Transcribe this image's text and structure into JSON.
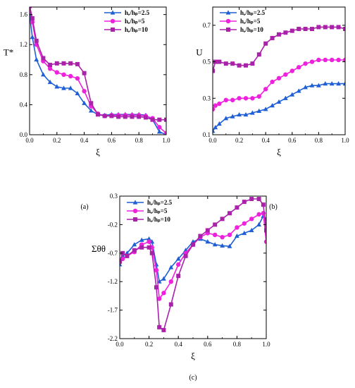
{
  "series_styles": [
    {
      "name": "hₑ/hₚ=2.5",
      "color": "#1f5fd6",
      "marker": "triangle"
    },
    {
      "name": "hₑ/hₚ=5",
      "color": "#ee22dd",
      "marker": "circle"
    },
    {
      "name": "hₑ/hₚ=10",
      "color": "#aa22aa",
      "marker": "square"
    }
  ],
  "chart_data": [
    {
      "type": "line",
      "caption": "(a)",
      "xlabel": "ξ",
      "ylabel": "T*",
      "xlim": [
        0,
        1
      ],
      "ylim": [
        0,
        1.7
      ],
      "xticks": [
        "0.0",
        "0.2",
        "0.4",
        "0.6",
        "0.8",
        "1.0"
      ],
      "yticks": [
        "0.0",
        "0.4",
        "0.8",
        "1.2",
        "1.6"
      ],
      "legend": "top-right",
      "series": [
        {
          "name": "hₑ/hₚ=2.5",
          "x": [
            0,
            0.02,
            0.05,
            0.1,
            0.15,
            0.2,
            0.25,
            0.3,
            0.35,
            0.4,
            0.45,
            0.5,
            0.55,
            0.6,
            0.65,
            0.7,
            0.75,
            0.8,
            0.85,
            0.9,
            0.95,
            1.0
          ],
          "y": [
            1.6,
            1.3,
            1.0,
            0.8,
            0.7,
            0.64,
            0.62,
            0.62,
            0.55,
            0.42,
            0.32,
            0.27,
            0.26,
            0.27,
            0.27,
            0.27,
            0.27,
            0.27,
            0.26,
            0.2,
            0.04,
            0.0
          ]
        },
        {
          "name": "hₑ/hₚ=5",
          "x": [
            0,
            0.02,
            0.05,
            0.1,
            0.15,
            0.2,
            0.25,
            0.3,
            0.35,
            0.4,
            0.45,
            0.5,
            0.55,
            0.6,
            0.65,
            0.7,
            0.75,
            0.8,
            0.85,
            0.9,
            0.95,
            1.0
          ],
          "y": [
            1.7,
            1.5,
            1.2,
            0.98,
            0.88,
            0.83,
            0.8,
            0.78,
            0.75,
            0.58,
            0.38,
            0.28,
            0.25,
            0.26,
            0.26,
            0.26,
            0.26,
            0.26,
            0.25,
            0.22,
            0.1,
            0.02
          ]
        },
        {
          "name": "hₑ/hₚ=10",
          "x": [
            0,
            0.02,
            0.05,
            0.1,
            0.15,
            0.2,
            0.25,
            0.3,
            0.35,
            0.4,
            0.45,
            0.5,
            0.55,
            0.6,
            0.65,
            0.7,
            0.75,
            0.8,
            0.85,
            0.9,
            0.95,
            1.0
          ],
          "y": [
            1.72,
            1.55,
            1.25,
            1.02,
            0.93,
            0.95,
            0.95,
            0.95,
            0.94,
            0.82,
            0.42,
            0.27,
            0.25,
            0.25,
            0.24,
            0.24,
            0.24,
            0.24,
            0.23,
            0.2,
            0.2,
            0.2
          ]
        }
      ]
    },
    {
      "type": "line",
      "caption": "(b)",
      "xlabel": "ξ",
      "ylabel": "U",
      "xlim": [
        0,
        1
      ],
      "ylim": [
        0.1,
        0.8
      ],
      "xticks": [
        "0.0",
        "0.2",
        "0.4",
        "0.6",
        "0.8",
        "1.0"
      ],
      "yticks": [
        "0.1",
        "0.3",
        "0.5",
        "0.7"
      ],
      "legend": "top-left",
      "series": [
        {
          "name": "hₑ/hₚ=2.5",
          "x": [
            0,
            0.02,
            0.05,
            0.1,
            0.15,
            0.2,
            0.25,
            0.3,
            0.35,
            0.4,
            0.45,
            0.5,
            0.55,
            0.6,
            0.65,
            0.7,
            0.75,
            0.8,
            0.85,
            0.9,
            0.95,
            1.0
          ],
          "y": [
            0.12,
            0.14,
            0.16,
            0.19,
            0.2,
            0.21,
            0.21,
            0.22,
            0.23,
            0.24,
            0.26,
            0.28,
            0.3,
            0.32,
            0.34,
            0.36,
            0.37,
            0.37,
            0.38,
            0.38,
            0.38,
            0.38
          ]
        },
        {
          "name": "hₑ/hₚ=5",
          "x": [
            0,
            0.02,
            0.05,
            0.1,
            0.15,
            0.2,
            0.25,
            0.3,
            0.35,
            0.4,
            0.45,
            0.5,
            0.55,
            0.6,
            0.65,
            0.7,
            0.75,
            0.8,
            0.85,
            0.9,
            0.95,
            1.0
          ],
          "y": [
            0.24,
            0.26,
            0.27,
            0.29,
            0.29,
            0.3,
            0.3,
            0.3,
            0.31,
            0.35,
            0.39,
            0.41,
            0.43,
            0.45,
            0.47,
            0.49,
            0.5,
            0.51,
            0.51,
            0.51,
            0.51,
            0.51
          ]
        },
        {
          "name": "hₑ/hₚ=10",
          "x": [
            0,
            0.02,
            0.05,
            0.1,
            0.15,
            0.2,
            0.25,
            0.3,
            0.35,
            0.4,
            0.45,
            0.5,
            0.55,
            0.6,
            0.65,
            0.7,
            0.75,
            0.8,
            0.85,
            0.9,
            0.95,
            1.0
          ],
          "y": [
            0.45,
            0.5,
            0.5,
            0.49,
            0.49,
            0.48,
            0.48,
            0.49,
            0.54,
            0.6,
            0.63,
            0.65,
            0.66,
            0.67,
            0.68,
            0.68,
            0.68,
            0.69,
            0.69,
            0.69,
            0.69,
            0.68
          ]
        }
      ]
    },
    {
      "type": "line",
      "caption": "(c)",
      "xlabel": "ξ",
      "ylabel": "Σθθ",
      "xlim": [
        0,
        1
      ],
      "ylim": [
        -2.2,
        0.3
      ],
      "xticks": [
        "0.0",
        "0.2",
        "0.4",
        "0.6",
        "0.8",
        "1.0"
      ],
      "yticks": [
        "-2.2",
        "-1.7",
        "-1.2",
        "-0.7",
        "-0.2",
        "0.3"
      ],
      "legend": "top-left",
      "series": [
        {
          "name": "hₑ/hₚ=2.5",
          "x": [
            0,
            0.02,
            0.05,
            0.1,
            0.15,
            0.2,
            0.22,
            0.25,
            0.27,
            0.3,
            0.35,
            0.4,
            0.45,
            0.5,
            0.55,
            0.6,
            0.65,
            0.7,
            0.75,
            0.8,
            0.85,
            0.9,
            0.95,
            0.98,
            1.0
          ],
          "y": [
            -0.9,
            -0.75,
            -0.7,
            -0.55,
            -0.47,
            -0.45,
            -0.5,
            -0.9,
            -1.2,
            -1.15,
            -0.95,
            -0.8,
            -0.65,
            -0.5,
            -0.45,
            -0.5,
            -0.55,
            -0.57,
            -0.58,
            -0.4,
            -0.35,
            -0.3,
            -0.2,
            -0.05,
            -0.1
          ]
        },
        {
          "name": "hₑ/hₚ=5",
          "x": [
            0,
            0.02,
            0.05,
            0.1,
            0.15,
            0.2,
            0.22,
            0.25,
            0.27,
            0.3,
            0.35,
            0.4,
            0.45,
            0.5,
            0.55,
            0.6,
            0.65,
            0.7,
            0.75,
            0.8,
            0.85,
            0.9,
            0.95,
            0.98,
            1.0
          ],
          "y": [
            -0.85,
            -0.8,
            -0.75,
            -0.68,
            -0.55,
            -0.5,
            -0.6,
            -1.0,
            -1.5,
            -1.4,
            -1.2,
            -0.9,
            -0.7,
            -0.55,
            -0.42,
            -0.35,
            -0.38,
            -0.42,
            -0.38,
            -0.25,
            -0.18,
            -0.1,
            -0.02,
            0.0,
            -0.5
          ]
        },
        {
          "name": "hₑ/hₚ=10",
          "x": [
            0,
            0.02,
            0.05,
            0.1,
            0.15,
            0.2,
            0.22,
            0.25,
            0.27,
            0.3,
            0.35,
            0.4,
            0.45,
            0.5,
            0.55,
            0.6,
            0.65,
            0.7,
            0.75,
            0.8,
            0.85,
            0.9,
            0.95,
            0.98,
            1.0
          ],
          "y": [
            -0.85,
            -0.7,
            -0.75,
            -0.65,
            -0.6,
            -0.6,
            -0.7,
            -1.3,
            -2.0,
            -2.05,
            -1.6,
            -1.1,
            -0.75,
            -0.55,
            -0.4,
            -0.3,
            -0.2,
            -0.1,
            0.0,
            0.1,
            0.2,
            0.25,
            0.25,
            0.15,
            -0.3
          ]
        }
      ]
    }
  ]
}
